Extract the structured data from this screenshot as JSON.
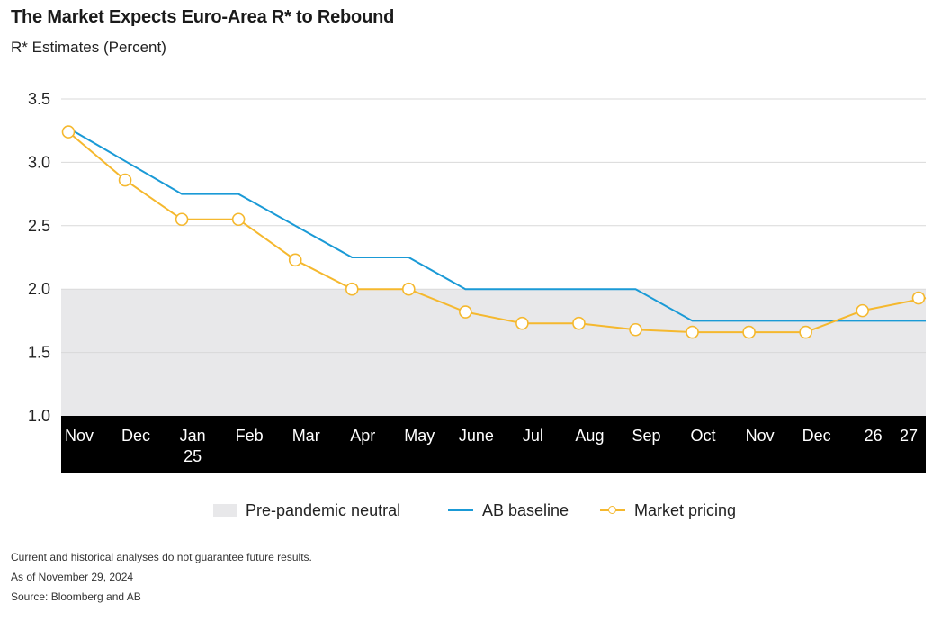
{
  "header": {
    "title": "The Market Expects Euro-Area R* to Rebound",
    "subtitle": "R* Estimates (Percent)"
  },
  "colors": {
    "ab_baseline": "#1a9ad6",
    "market_pricing": "#f5b82e",
    "neutral_band": "#e8e8ea",
    "axis_band": "#000000",
    "gridline": "#d9d9d9"
  },
  "chart_data": {
    "type": "line",
    "categories": [
      "Nov",
      "Dec",
      "Jan\n25",
      "Feb",
      "Mar",
      "Apr",
      "May",
      "June",
      "Jul",
      "Aug",
      "Sep",
      "Oct",
      "Nov",
      "Dec",
      "26",
      "27"
    ],
    "y_ticks": [
      "3.5",
      "3.0",
      "2.5",
      "2.0",
      "1.5",
      "1.0"
    ],
    "ylim": [
      1.0,
      3.5
    ],
    "grid": true,
    "legend_position": "bottom",
    "bands": [
      {
        "name": "Pre-pandemic neutral",
        "from": 1.0,
        "to": 2.0
      }
    ],
    "series": [
      {
        "name": "AB baseline",
        "marker": false,
        "x": [
          0,
          2,
          3,
          5,
          6,
          7,
          10,
          11,
          15.3
        ],
        "values": [
          3.27,
          2.75,
          2.75,
          2.25,
          2.25,
          2.0,
          2.0,
          1.75,
          1.75
        ]
      },
      {
        "name": "Market pricing",
        "marker": true,
        "x": [
          0,
          1,
          2,
          3,
          4,
          5,
          6,
          7,
          8,
          9,
          10,
          11,
          12,
          13,
          14,
          15.15
        ],
        "values": [
          3.24,
          2.86,
          2.55,
          2.55,
          2.23,
          2.0,
          2.0,
          1.82,
          1.73,
          1.73,
          1.68,
          1.66,
          1.66,
          1.66,
          1.83,
          1.93
        ]
      }
    ]
  },
  "legend": {
    "items": [
      "Pre-pandemic neutral",
      "AB baseline",
      "Market pricing"
    ]
  },
  "footnotes": {
    "line1": "Current and historical analyses do not guarantee future results.",
    "line2": "As of November 29, 2024",
    "line3": "Source: Bloomberg and AB"
  }
}
